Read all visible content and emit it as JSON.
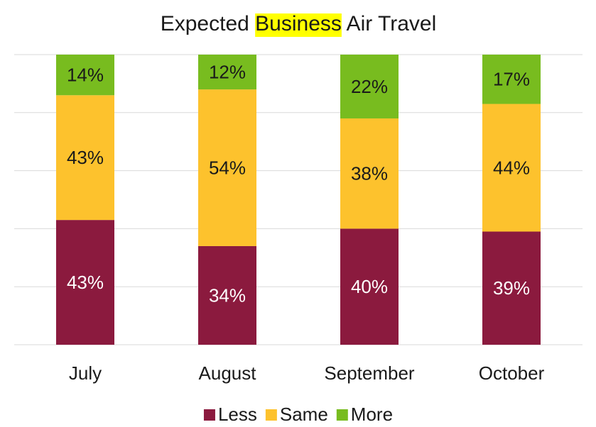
{
  "chart_data": {
    "type": "stacked_bar",
    "title": "Expected Business Air Travel",
    "title_highlight": {
      "text": "Business",
      "color": "#ffff00"
    },
    "categories": [
      "July",
      "August",
      "September",
      "October"
    ],
    "series": [
      {
        "name": "Less",
        "color": "#8b1a3e",
        "label_color": "#ffffff",
        "values": [
          43,
          34,
          40,
          39
        ],
        "value_labels": [
          "43%",
          "34%",
          "40%",
          "39%"
        ]
      },
      {
        "name": "Same",
        "color": "#fdc22d",
        "label_color": "#1a1a1a",
        "values": [
          43,
          54,
          38,
          44
        ],
        "value_labels": [
          "43%",
          "54%",
          "38%",
          "44%"
        ]
      },
      {
        "name": "More",
        "color": "#78bc1f",
        "label_color": "#1a1a1a",
        "values": [
          14,
          12,
          22,
          17
        ],
        "value_labels": [
          "14%",
          "12%",
          "22%",
          "17%"
        ]
      }
    ],
    "ylim": [
      0,
      100
    ],
    "yticks": [
      0,
      20,
      40,
      60,
      80,
      100
    ],
    "grid": true,
    "legend": "bottom"
  }
}
